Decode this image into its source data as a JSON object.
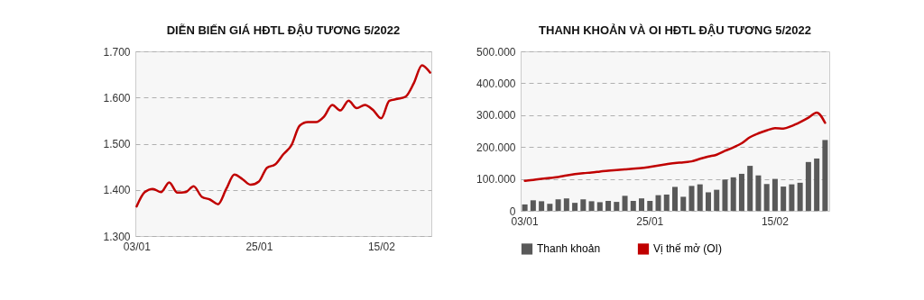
{
  "chart_data": [
    {
      "type": "line",
      "title": "DIỄN BIẾN GIÁ HĐTL ĐẬU TƯƠNG 5/2022",
      "categories": [
        "03/01",
        null,
        null,
        null,
        null,
        null,
        null,
        null,
        null,
        null,
        null,
        null,
        null,
        null,
        null,
        "25/01",
        null,
        null,
        null,
        null,
        null,
        null,
        null,
        null,
        null,
        null,
        null,
        null,
        null,
        null,
        "15/02",
        null,
        null,
        null,
        null,
        null,
        null
      ],
      "values": [
        1364,
        1395,
        1402,
        1395,
        1416,
        1394,
        1395,
        1408,
        1385,
        1379,
        1369,
        1402,
        1433,
        1423,
        1411,
        1418,
        1448,
        1455,
        1477,
        1497,
        1539,
        1547,
        1547,
        1559,
        1584,
        1572,
        1593,
        1577,
        1584,
        1573,
        1555,
        1593,
        1597,
        1602,
        1631,
        1670,
        1654
      ],
      "color": "#c00000",
      "ylim": [
        1300,
        1700
      ],
      "yticks": [
        {
          "value": 1300,
          "label": "1.300"
        },
        {
          "value": 1400,
          "label": "1.400"
        },
        {
          "value": 1500,
          "label": "1.500"
        },
        {
          "value": 1600,
          "label": "1.600"
        },
        {
          "value": 1700,
          "label": "1.700"
        }
      ],
      "grid": "y"
    },
    {
      "type": "bar",
      "title": "THANH KHOẢN VÀ OI HĐTL ĐẬU TƯƠNG 5/2022",
      "categories": [
        "03/01",
        null,
        null,
        null,
        null,
        null,
        null,
        null,
        null,
        null,
        null,
        null,
        null,
        null,
        null,
        "25/01",
        null,
        null,
        null,
        null,
        null,
        null,
        null,
        null,
        null,
        null,
        null,
        null,
        null,
        null,
        "15/02",
        null,
        null,
        null,
        null,
        null,
        null
      ],
      "series": [
        {
          "name": "Thanh khoản",
          "type": "bar",
          "color": "#595959",
          "values": [
            20000,
            33000,
            30000,
            22000,
            36000,
            39000,
            25000,
            36000,
            30000,
            27000,
            31000,
            28000,
            47000,
            31000,
            39000,
            31000,
            49000,
            51000,
            75000,
            44000,
            78000,
            83000,
            58000,
            66000,
            98000,
            105000,
            116000,
            141000,
            111000,
            84000,
            100000,
            76000,
            83000,
            88000,
            153000,
            164000,
            222000
          ]
        },
        {
          "name": "Vị thế mở (OI)",
          "type": "line",
          "color": "#c00000",
          "values": [
            94000,
            97000,
            100000,
            103000,
            106000,
            111000,
            115000,
            118000,
            120000,
            123000,
            126000,
            128000,
            130000,
            132000,
            134000,
            138000,
            142000,
            146000,
            150000,
            152000,
            155000,
            163000,
            170000,
            176000,
            188000,
            199000,
            212000,
            231000,
            243000,
            252000,
            259000,
            258000,
            266000,
            278000,
            292000,
            308000,
            276000
          ]
        }
      ],
      "ylim": [
        0,
        500000
      ],
      "yticks": [
        0,
        {
          "value": 100000,
          "label": "100.000"
        },
        {
          "value": 200000,
          "label": "200.000"
        },
        {
          "value": 300000,
          "label": "300.000"
        },
        {
          "value": 400000,
          "label": "400.000"
        },
        {
          "value": 500000,
          "label": "500.000"
        }
      ],
      "grid": "y",
      "legend": "bottom"
    }
  ]
}
